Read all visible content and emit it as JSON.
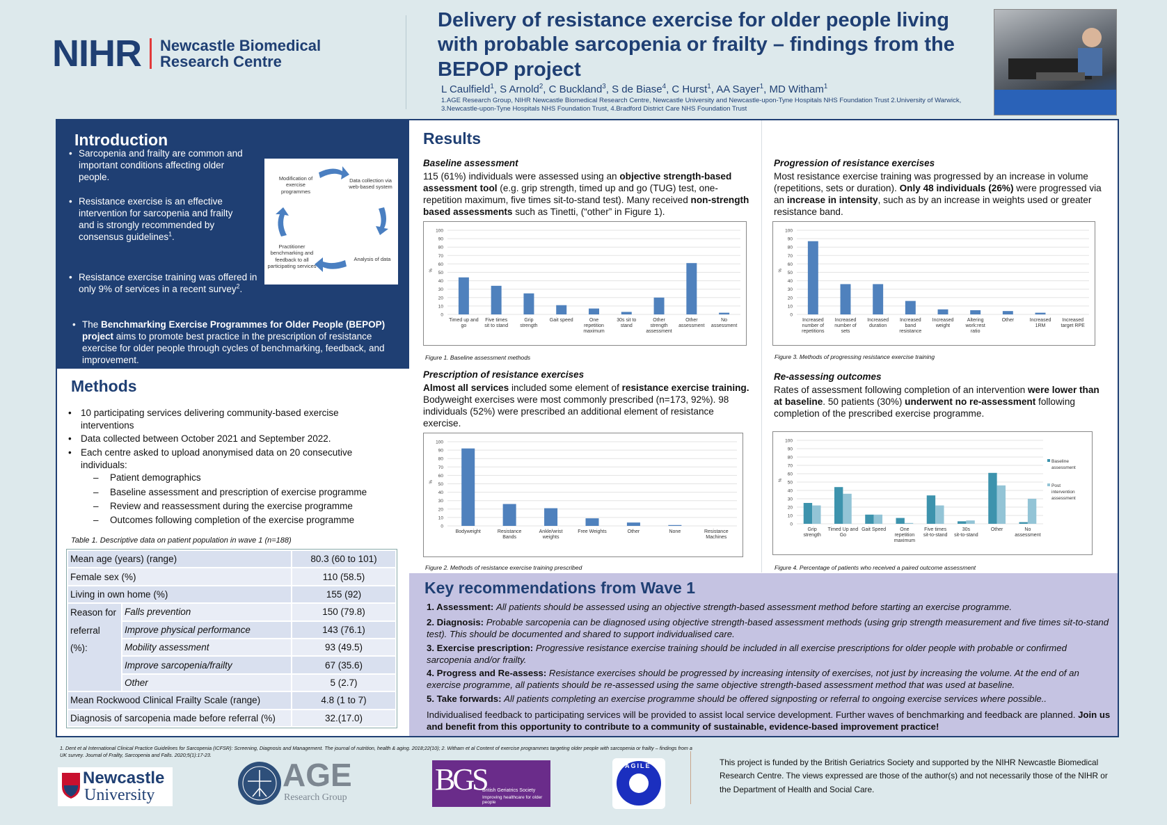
{
  "header": {
    "logo": {
      "nihr": "NIHR",
      "line1": "Newcastle Biomedical",
      "line2": "Research Centre"
    },
    "title": "Delivery of resistance exercise for older people living with probable sarcopenia or frailty – findings from the BEPOP project",
    "authors": [
      [
        "L Caulfield",
        ""
      ],
      [
        "1",
        "sup"
      ],
      [
        ", S Arnold",
        ""
      ],
      [
        "2",
        "sup"
      ],
      [
        ", C Buckland",
        ""
      ],
      [
        "3",
        "sup"
      ],
      [
        ", S de Biase",
        ""
      ],
      [
        "4",
        "sup"
      ],
      [
        ", C Hurst",
        ""
      ],
      [
        "1",
        "sup"
      ],
      [
        ", AA Sayer",
        ""
      ],
      [
        "1",
        "sup"
      ],
      [
        ", MD Witham",
        ""
      ],
      [
        "1",
        "sup"
      ]
    ],
    "affiliations": "1.AGE Research Group, NIHR Newcastle Biomedical Research Centre, Newcastle University and Newcastle-upon-Tyne Hospitals NHS Foundation Trust 2.University of Warwick, 3.Newcastle-upon-Tyne Hospitals NHS Foundation Trust, 4.Bradford District Care NHS Foundation Trust"
  },
  "intro": {
    "heading": "Introduction",
    "bullets": [
      [
        [
          "Sarcopenia and frailty are common and important conditions affecting older people.",
          ""
        ]
      ],
      [
        [
          "Resistance exercise is an effective intervention for sarcopenia and frailty and  is strongly recommended by consensus guidelines",
          ""
        ],
        [
          "1",
          "sup"
        ],
        [
          ".",
          ""
        ]
      ],
      [
        [
          "Resistance exercise training was offered in only 9% of services in a recent survey",
          ""
        ],
        [
          "2",
          "sup"
        ],
        [
          ".",
          ""
        ]
      ],
      [
        [
          "The ",
          ""
        ],
        [
          "Benchmarking Exercise Programmes for Older People (BEPOP) project",
          "b"
        ],
        [
          " aims to promote best practice in the prescription of resistance exercise for older people through cycles of benchmarking, feedback, and improvement.",
          ""
        ]
      ]
    ],
    "cycle": {
      "modification": "Modification of exercise programmes",
      "collection": "Data collection via web-based system",
      "analysis": "Analysis of data",
      "feedback": "Practitioner benchmarking and feedback to all participating services"
    }
  },
  "methods": {
    "heading": "Methods",
    "bullets": [
      "10 participating services delivering community-based exercise interventions",
      "Data collected between October 2021 and September 2022.",
      "Each centre asked to upload anonymised data on 20 consecutive individuals:"
    ],
    "subitems": [
      "Patient demographics",
      "Baseline assessment and prescription of exercise programme",
      "Review and reassessment during the exercise programme",
      "Outcomes following completion of the exercise programme"
    ],
    "table_caption": "Table 1. Descriptive data on patient population in wave 1 (n=188)",
    "table": {
      "rows": [
        [
          "Mean age (years) (range)",
          "80.3 (60 to 101)"
        ],
        [
          "Female sex (%)",
          "110 (58.5)"
        ],
        [
          "Living in own home (%)",
          "155 (92)"
        ]
      ],
      "reason_label_1": "Reason for",
      "reason_label_2": "referral (%):",
      "reasons": [
        [
          "Falls prevention",
          "150 (79.8)"
        ],
        [
          "Improve physical performance",
          "143 (76.1)"
        ],
        [
          "Mobility assessment",
          "93 (49.5)"
        ],
        [
          "Improve sarcopenia/frailty",
          "67 (35.6)"
        ],
        [
          "Other",
          "5 (2.7)"
        ]
      ],
      "rows_end": [
        [
          "Mean Rockwood Clinical Frailty Scale (range)",
          "4.8 (1 to 7)"
        ],
        [
          "Diagnosis of sarcopenia made before referral (%)",
          "32.(17.0)"
        ]
      ]
    }
  },
  "results": {
    "heading": "Results",
    "baseline": {
      "heading": "Baseline assessment",
      "text": [
        [
          "115 (61%) individuals were assessed using an ",
          ""
        ],
        [
          "objective strength-based assessment tool",
          "b"
        ],
        [
          " (e.g.  grip strength, timed up and go (TUG) test, one-repetition maximum, five times sit-to-stand test). Many received ",
          ""
        ],
        [
          "non-strength based assessments",
          "b"
        ],
        [
          " such as Tinetti, (“other” in Figure 1).",
          ""
        ]
      ],
      "caption": "Figure 1. Baseline assessment methods"
    },
    "prescription": {
      "heading": "Prescription of resistance exercises",
      "text": [
        [
          "Almost all services",
          "b"
        ],
        [
          " included some element of ",
          ""
        ],
        [
          "resistance exercise training.",
          "b"
        ],
        [
          " Bodyweight exercises were most commonly prescribed (n=173, 92%). 98 individuals (52%) were prescribed an additional element of resistance exercise.",
          ""
        ]
      ],
      "caption": "Figure 2. Methods of resistance exercise training prescribed"
    },
    "progression": {
      "heading": "Progression of resistance exercises",
      "text": [
        [
          "Most resistance exercise training was progressed by an increase in volume (repetitions, sets or duration). ",
          ""
        ],
        [
          "Only 48 individuals (26%)",
          "b"
        ],
        [
          " were progressed via an ",
          ""
        ],
        [
          "increase in intensity",
          "b"
        ],
        [
          ", such as by an increase in weights used or greater resistance band.",
          ""
        ]
      ],
      "caption": "Figure 3. Methods of progressing resistance exercise training"
    },
    "reassessing": {
      "heading": "Re-assessing outcomes",
      "text": [
        [
          "Rates of assessment following completion of an intervention ",
          ""
        ],
        [
          "were lower than at baseline",
          "b"
        ],
        [
          ". 50 patients (30%) ",
          ""
        ],
        [
          "underwent no re-assessment",
          "b"
        ],
        [
          " following completion of the prescribed exercise programme.",
          ""
        ]
      ],
      "caption": "Figure 4. Percentage of patients who received a paired outcome assessment"
    }
  },
  "chart_data": [
    {
      "type": "bar",
      "ylabel": "%",
      "ylim": [
        0,
        100
      ],
      "yticks": [
        0,
        10,
        20,
        30,
        40,
        50,
        60,
        70,
        80,
        90,
        100
      ],
      "grid": true,
      "color": "#4f81bd",
      "categories": [
        "Timed up and go",
        "Five times sit to stand",
        "Grip strength",
        "Gait speed",
        "One repetition maximum",
        "30s sit to stand",
        "Other strength assessment",
        "Other assessment",
        "No assessment"
      ],
      "values": [
        44,
        34,
        25,
        11,
        7,
        3,
        20,
        61,
        2
      ]
    },
    {
      "type": "bar",
      "ylabel": "%",
      "ylim": [
        0,
        100
      ],
      "yticks": [
        0,
        10,
        20,
        30,
        40,
        50,
        60,
        70,
        80,
        90,
        100
      ],
      "grid": true,
      "color": "#4f81bd",
      "categories": [
        "Bodyweight",
        "Resistance Bands",
        "Ankle/wrist weights",
        "Free Weights",
        "Other",
        "None",
        "Resistance Machines"
      ],
      "values": [
        92,
        26,
        21,
        9,
        4,
        1,
        0
      ]
    },
    {
      "type": "bar",
      "ylabel": "%",
      "ylim": [
        0,
        100
      ],
      "yticks": [
        0,
        10,
        20,
        30,
        40,
        50,
        60,
        70,
        80,
        90,
        100
      ],
      "grid": true,
      "color": "#4f81bd",
      "categories": [
        "Increased number of repetitions",
        "Increased number of sets",
        "Increased duration",
        "Increased band resistance",
        "Increased weight",
        "Altering work:rest ratio",
        "Other",
        "Increased 1RM",
        "Increased target RPE"
      ],
      "values": [
        87,
        36,
        36,
        16,
        6,
        5,
        4,
        2,
        0
      ]
    },
    {
      "type": "bar",
      "ylabel": "%",
      "ylim": [
        0,
        100
      ],
      "yticks": [
        0,
        10,
        20,
        30,
        40,
        50,
        60,
        70,
        80,
        90,
        100
      ],
      "grid": true,
      "legend": "right",
      "categories": [
        "Grip strength",
        "Timed Up and Go",
        "Gait Speed",
        "One repetition maximum",
        "Five times sit-to-stand",
        "30s sit-to-stand",
        "Other",
        "No assessment"
      ],
      "series": [
        {
          "name": "Baseline assessment",
          "color": "#3d93ad",
          "values": [
            25,
            44,
            11,
            7,
            34,
            3,
            61,
            2
          ]
        },
        {
          "name": "Post intervention assessment",
          "color": "#93c4d6",
          "values": [
            22,
            36,
            11,
            1,
            22,
            4,
            46,
            30
          ]
        }
      ]
    }
  ],
  "key_recommendations": {
    "heading": "Key recommendations from Wave 1",
    "items": [
      [
        [
          "1. Assessment: ",
          "b"
        ],
        [
          "All patients should be assessed using an objective strength-based assessment method before starting an exercise programme.",
          "i"
        ]
      ],
      [
        [
          "2. Diagnosis: ",
          "b"
        ],
        [
          "Probable sarcopenia can be diagnosed using objective strength-based assessment methods (using grip strength measurement and five times sit-to-stand test). This should be documented and shared to support individualised care.",
          "i"
        ]
      ],
      [
        [
          "3. Exercise prescription: ",
          "b"
        ],
        [
          "Progressive resistance exercise training should be included in all exercise prescriptions for older people with probable or confirmed sarcopenia and/or frailty.",
          "i"
        ]
      ],
      [
        [
          "4. Progress and Re-assess: ",
          "b"
        ],
        [
          "Resistance exercises should be progressed by increasing intensity of exercises, not just by increasing the volume. At the end of an exercise programme, all patients should be re-assessed using the same objective strength-based assessment method that was used at baseline.",
          "i"
        ]
      ],
      [
        [
          "5. Take forwards: ",
          "b"
        ],
        [
          "All patients completing an exercise programme should be offered signposting or referral to ongoing exercise services where possible..",
          "i"
        ]
      ]
    ],
    "closing": [
      [
        "Individualised feedback to participating services will be provided to assist local service development. Further waves of benchmarking and feedback are planned. ",
        ""
      ],
      [
        "Join us and benefit from this opportunity to contribute to a community of sustainable, evidence-based improvement practice!",
        "b"
      ]
    ]
  },
  "footer": {
    "references": "1.   Dent et al International Clinical Practice Guidelines for Sarcopenia (ICFSR): Screening, Diagnosis and Management. The journal of nutrition, health & aging. 2018;22(10); 2. Witham et al Content of exercise programmes targeting older people with sarcopenia or frailty – findings from a UK survey. Journal of Frailty, Sarcopenia and Falls. 2020;5(1):17-23.",
    "logos": {
      "newcastle_1": "Newcastle",
      "newcastle_2": "University",
      "age_1": "AGE",
      "age_2": "Research Group",
      "bgs_mark": "BGS",
      "bgs_1": "British Geriatrics Society",
      "bgs_2": "Improving healthcare for older people",
      "agile": "AGILE"
    },
    "funding": "This project is funded by the British Geriatrics Society and supported by the NIHR Newcastle Biomedical Research Centre. The views expressed are those of the author(s) and not necessarily those of the NIHR or the Department of Health and Social Care."
  }
}
